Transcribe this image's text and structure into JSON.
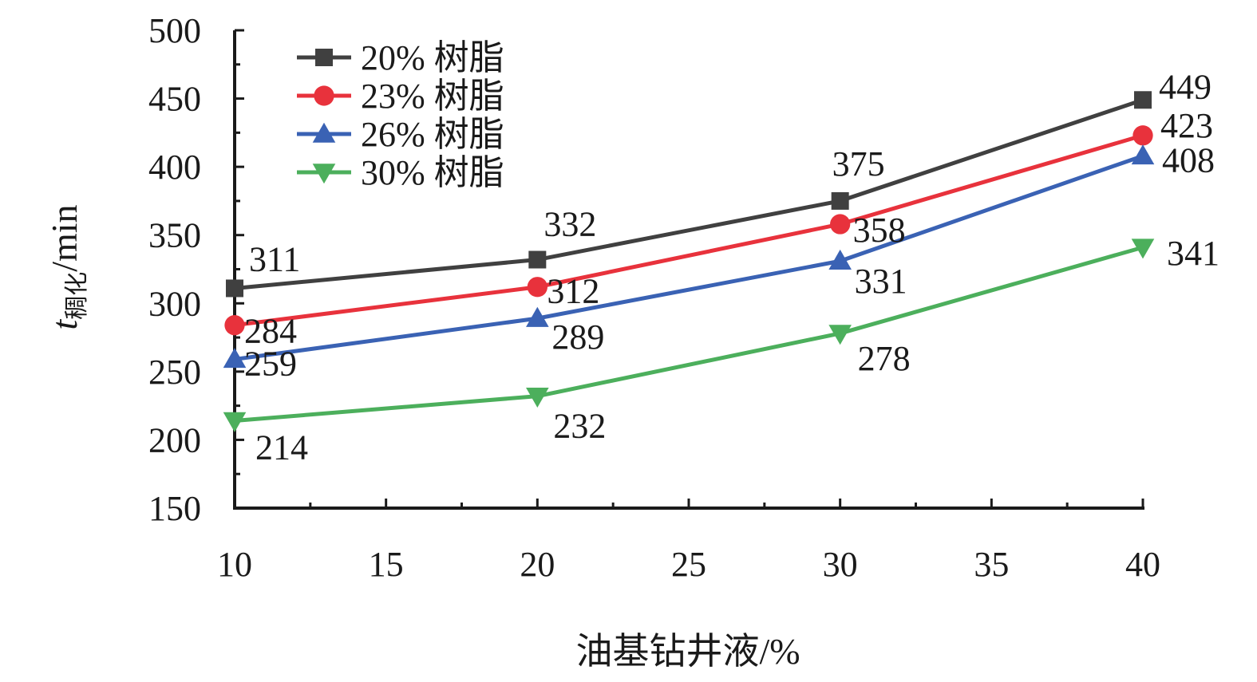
{
  "chart_data": {
    "type": "line",
    "x": [
      10,
      20,
      30,
      40
    ],
    "xlabel": "油基钻井液/%",
    "ylabel": {
      "main": "t",
      "sub": "稠化",
      "unit": "/min"
    },
    "xlim": [
      10,
      40
    ],
    "ylim": [
      150,
      500
    ],
    "xticks": [
      10,
      15,
      20,
      25,
      30,
      35,
      40
    ],
    "yticks": [
      150,
      200,
      250,
      300,
      350,
      400,
      450,
      500
    ],
    "grid": false,
    "legend_position": "top-left",
    "series": [
      {
        "name": "20% 树脂",
        "values": [
          311,
          332,
          375,
          449
        ],
        "color": "#404040",
        "marker": "square"
      },
      {
        "name": "23% 树脂",
        "values": [
          284,
          312,
          358,
          423
        ],
        "color": "#e8323c",
        "marker": "circle"
      },
      {
        "name": "26% 树脂",
        "values": [
          259,
          289,
          331,
          408
        ],
        "color": "#3a62b4",
        "marker": "triangle-up"
      },
      {
        "name": "30% 树脂",
        "values": [
          214,
          232,
          278,
          341
        ],
        "color": "#4caf5c",
        "marker": "triangle-down"
      }
    ]
  }
}
